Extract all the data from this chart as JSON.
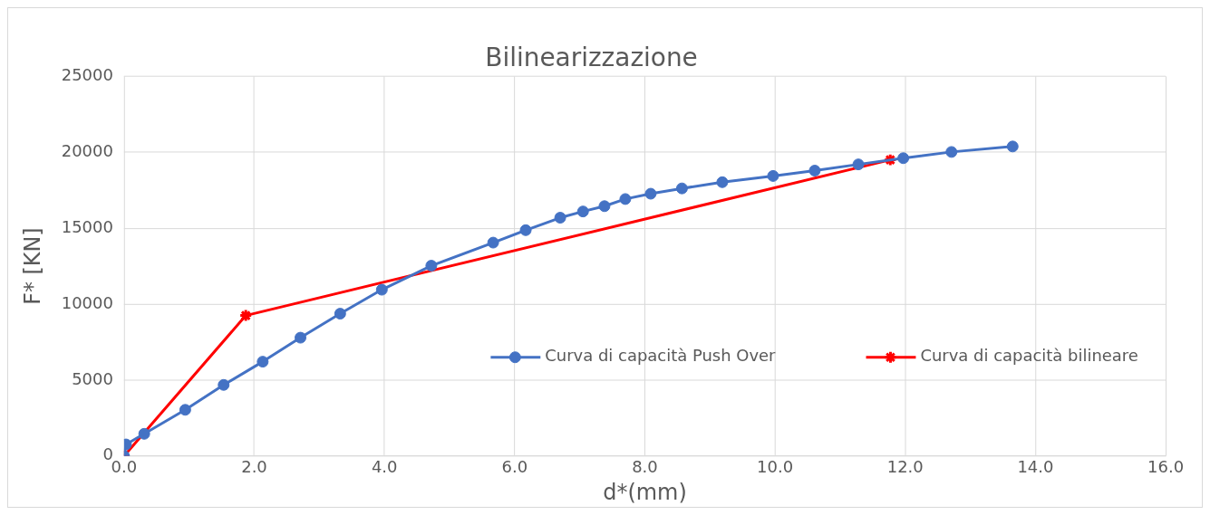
{
  "chart_data": {
    "type": "line",
    "title": "Bilinearizzazione",
    "xlabel": "d*(mm)",
    "ylabel": "F* [KN]",
    "xlim": [
      0,
      16
    ],
    "xticks": [
      {
        "value": 0,
        "label": "0.0"
      },
      {
        "value": 2,
        "label": "2.0"
      },
      {
        "value": 4,
        "label": "4.0"
      },
      {
        "value": 6,
        "label": "6.0"
      },
      {
        "value": 8,
        "label": "8.0"
      },
      {
        "value": 10,
        "label": "10.0"
      },
      {
        "value": 12,
        "label": "12.0"
      },
      {
        "value": 14,
        "label": "14.0"
      },
      {
        "value": 16,
        "label": "16.0"
      }
    ],
    "ylim": [
      0,
      25000
    ],
    "yticks": [
      0,
      5000,
      10000,
      15000,
      20000,
      25000
    ],
    "grid": true,
    "legend": "right",
    "series": [
      {
        "name": "Curva di capacità Push Over",
        "color": "#4472c4",
        "marker": "circle",
        "x": [
          0,
          0.03,
          0.31,
          0.94,
          1.53,
          2.13,
          2.71,
          3.32,
          3.96,
          4.72,
          5.67,
          6.17,
          6.7,
          7.05,
          7.38,
          7.7,
          8.09,
          8.57,
          9.19,
          9.97,
          10.61,
          11.28,
          11.97,
          12.71,
          13.65
        ],
        "values": [
          0,
          760,
          1460,
          3040,
          4680,
          6210,
          7790,
          9370,
          10950,
          12530,
          14050,
          14870,
          15690,
          16100,
          16450,
          16920,
          17270,
          17620,
          18030,
          18440,
          18790,
          19200,
          19610,
          20020,
          20380
        ]
      },
      {
        "name": "Curva di capacità bilineare",
        "color": "#ff0000",
        "marker": "cross",
        "x": [
          0,
          1.87,
          11.77
        ],
        "values": [
          0,
          9250,
          19500
        ]
      }
    ]
  }
}
